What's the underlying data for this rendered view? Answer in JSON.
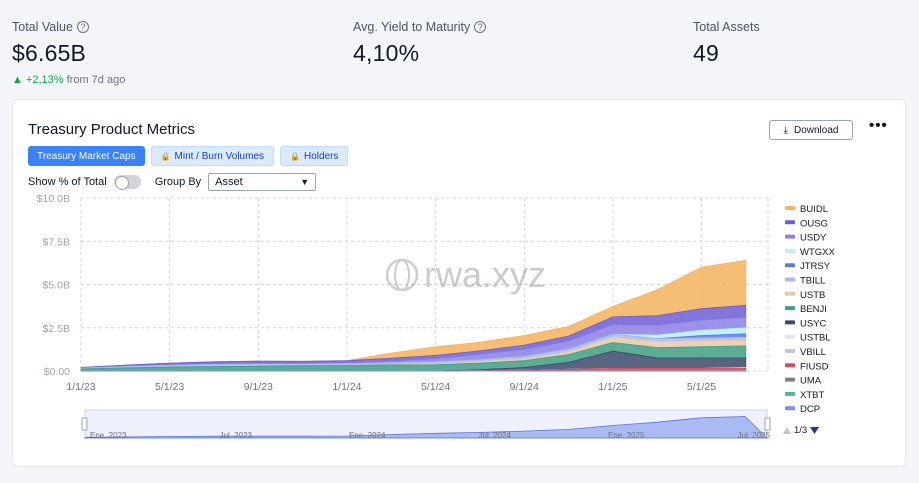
{
  "stats": {
    "total_value": {
      "label": "Total Value",
      "value": "$6.65B",
      "change": "▲ +2,13%",
      "change_suffix": "from 7d ago"
    },
    "avg_yield": {
      "label": "Avg. Yield to Maturity",
      "value": "4,10%"
    },
    "total_assets": {
      "label": "Total Assets",
      "value": "49"
    }
  },
  "card": {
    "title": "Treasury Product Metrics",
    "download_label": "Download",
    "more_label": "•••",
    "tabs": [
      {
        "label": "Treasury Market Caps"
      },
      {
        "label": "Mint / Burn Volumes"
      },
      {
        "label": "Holders"
      }
    ],
    "show_percent_label": "Show % of Total",
    "group_by_label": "Group By",
    "group_by_value": "Asset",
    "watermark": "rwa.xyz",
    "legend_page": "1/3"
  },
  "icons": {
    "question": "question-circle-icon",
    "download": "download-icon",
    "lock": "lock-icon",
    "chevron": "chevron-down-icon",
    "more": "more-dots-icon",
    "up": "triangle-up-icon",
    "down": "triangle-down-icon"
  },
  "colors": {
    "accent": "#3b82f6",
    "positive": "#16a34a"
  },
  "chart_data": {
    "type": "area",
    "stacked": true,
    "x_ticks": [
      "1/1/23",
      "5/1/23",
      "9/1/23",
      "1/1/24",
      "5/1/24",
      "9/1/24",
      "1/1/25",
      "5/1/25"
    ],
    "y_ticks": [
      "$0.00",
      "$2.5B",
      "$5.0B",
      "$7.5B",
      "$10.0B"
    ],
    "ylim": [
      0,
      10
    ],
    "y_unit": "B USD",
    "x": [
      "2023-01",
      "2023-03",
      "2023-05",
      "2023-07",
      "2023-09",
      "2023-11",
      "2024-01",
      "2024-03",
      "2024-05",
      "2024-07",
      "2024-09",
      "2024-11",
      "2025-01",
      "2025-03",
      "2025-05",
      "2025-07"
    ],
    "series": [
      {
        "name": "BUIDL",
        "color": "#f5b35c",
        "values": [
          0,
          0,
          0,
          0,
          0,
          0,
          0,
          0.3,
          0.5,
          0.5,
          0.55,
          0.55,
          0.6,
          1.5,
          2.4,
          2.6
        ]
      },
      {
        "name": "OUSG",
        "color": "#6d5dd3",
        "values": [
          0.04,
          0.08,
          0.12,
          0.14,
          0.15,
          0.13,
          0.13,
          0.17,
          0.19,
          0.2,
          0.25,
          0.3,
          0.45,
          0.55,
          0.65,
          0.7
        ]
      },
      {
        "name": "USDY",
        "color": "#8b7fe8",
        "values": [
          0,
          0,
          0,
          0.01,
          0.02,
          0.03,
          0.05,
          0.1,
          0.18,
          0.3,
          0.4,
          0.45,
          0.55,
          0.58,
          0.6,
          0.6
        ]
      },
      {
        "name": "WTGXX",
        "color": "#b8f0f5",
        "values": [
          0,
          0,
          0,
          0,
          0,
          0,
          0,
          0,
          0,
          0,
          0,
          0,
          0,
          0.2,
          0.3,
          0.35
        ]
      },
      {
        "name": "JTRSY",
        "color": "#5b7fe0",
        "values": [
          0,
          0,
          0,
          0,
          0,
          0,
          0,
          0,
          0,
          0,
          0,
          0,
          0,
          0,
          0.15,
          0.2
        ]
      },
      {
        "name": "TBILL",
        "color": "#a9b8f0",
        "values": [
          0.05,
          0.08,
          0.1,
          0.12,
          0.12,
          0.1,
          0.1,
          0.1,
          0.12,
          0.13,
          0.15,
          0.17,
          0.18,
          0.17,
          0.15,
          0.15
        ]
      },
      {
        "name": "USTB",
        "color": "#e8c9a8",
        "values": [
          0,
          0,
          0,
          0,
          0,
          0,
          0,
          0.02,
          0.05,
          0.08,
          0.1,
          0.15,
          0.3,
          0.35,
          0.35,
          0.35
        ]
      },
      {
        "name": "BENJI",
        "color": "#3f9e84",
        "values": [
          0.12,
          0.18,
          0.23,
          0.26,
          0.28,
          0.3,
          0.32,
          0.35,
          0.36,
          0.38,
          0.4,
          0.45,
          0.5,
          0.6,
          0.65,
          0.7
        ]
      },
      {
        "name": "USYC",
        "color": "#394a6b",
        "values": [
          0,
          0,
          0,
          0,
          0,
          0,
          0,
          0,
          0,
          0.05,
          0.15,
          0.4,
          1.0,
          0.6,
          0.6,
          0.55
        ]
      },
      {
        "name": "USTBL",
        "color": "#e6e6e6",
        "values": [
          0,
          0,
          0,
          0,
          0,
          0,
          0,
          0,
          0,
          0,
          0,
          0,
          0,
          0,
          0,
          0
        ]
      },
      {
        "name": "VBILL",
        "color": "#c6c2ee",
        "values": [
          0,
          0,
          0,
          0,
          0,
          0,
          0,
          0,
          0,
          0,
          0,
          0,
          0,
          0,
          0,
          0.05
        ]
      },
      {
        "name": "FIUSD",
        "color": "#d94a5a",
        "values": [
          0,
          0,
          0,
          0,
          0,
          0,
          0,
          0,
          0,
          0.02,
          0.05,
          0.1,
          0.15,
          0.15,
          0.15,
          0.15
        ]
      },
      {
        "name": "UMA",
        "color": "#7b8288",
        "values": [
          0,
          0,
          0,
          0,
          0,
          0,
          0,
          0,
          0,
          0,
          0,
          0,
          0,
          0,
          0,
          0
        ]
      },
      {
        "name": "XTBT",
        "color": "#4fb3a3",
        "values": [
          0,
          0,
          0,
          0,
          0,
          0,
          0,
          0,
          0,
          0,
          0,
          0,
          0,
          0,
          0,
          0
        ]
      },
      {
        "name": "DCP",
        "color": "#7d8cf0",
        "values": [
          0,
          0,
          0,
          0,
          0,
          0,
          0,
          0,
          0,
          0,
          0,
          0,
          0,
          0,
          0,
          0
        ]
      }
    ],
    "navigator_ticks": [
      "Ene. 2023",
      "Jul. 2023",
      "Ene. 2024",
      "Jul. 2024",
      "Ene. 2025",
      "Jul. 2025"
    ],
    "grid": true,
    "legend_placement": "right"
  }
}
